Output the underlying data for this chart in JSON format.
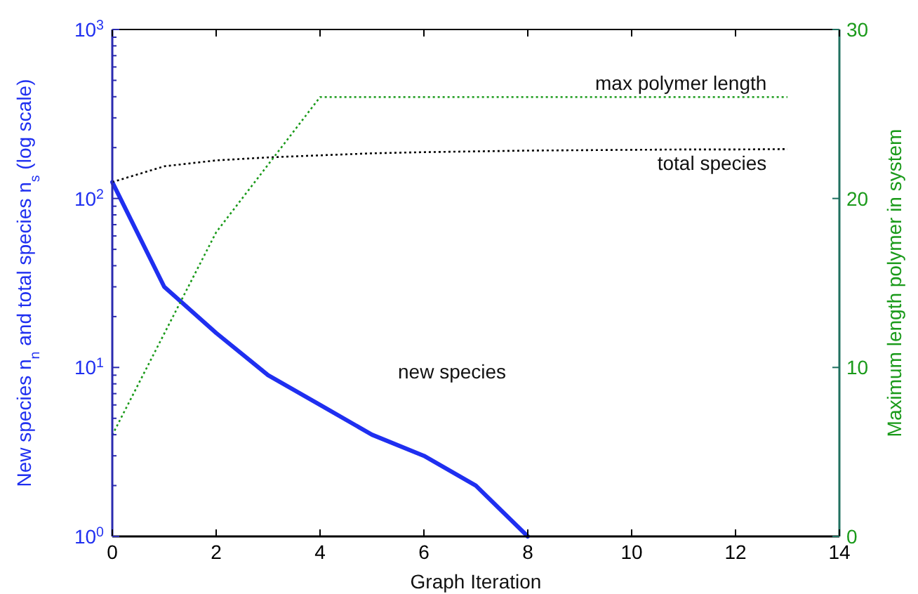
{
  "chart_data": {
    "type": "line",
    "xlabel": "Graph Iteration",
    "ylabel": "New species n$_{n}$ and total species n$_{s}$ (log scale)",
    "y2label": "Maximum length polymer in system",
    "log": true,
    "grid": false,
    "x": [
      0,
      1,
      2,
      3,
      4,
      5,
      6,
      7,
      8,
      9,
      10,
      11,
      12,
      13
    ],
    "xlim": [
      0,
      14
    ],
    "xticks": [
      0,
      2,
      4,
      6,
      8,
      10,
      12,
      14
    ],
    "ylim": [
      1,
      1000
    ],
    "yticks": [
      {
        "value": 1,
        "label": "10$^{0}$"
      },
      {
        "value": 2,
        "label": null
      },
      {
        "value": 3,
        "label": null
      },
      {
        "value": 4,
        "label": null
      },
      {
        "value": 5,
        "label": null
      },
      {
        "value": 6,
        "label": null
      },
      {
        "value": 7,
        "label": null
      },
      {
        "value": 8,
        "label": null
      },
      {
        "value": 9,
        "label": null
      },
      {
        "value": 10,
        "label": "10$^{1}$"
      },
      {
        "value": 20,
        "label": null
      },
      {
        "value": 30,
        "label": null
      },
      {
        "value": 40,
        "label": null
      },
      {
        "value": 50,
        "label": null
      },
      {
        "value": 60,
        "label": null
      },
      {
        "value": 70,
        "label": null
      },
      {
        "value": 80,
        "label": null
      },
      {
        "value": 90,
        "label": null
      },
      {
        "value": 100,
        "label": "10$^{2}$"
      },
      {
        "value": 200,
        "label": null
      },
      {
        "value": 300,
        "label": null
      },
      {
        "value": 400,
        "label": null
      },
      {
        "value": 500,
        "label": null
      },
      {
        "value": 600,
        "label": null
      },
      {
        "value": 700,
        "label": null
      },
      {
        "value": 800,
        "label": null
      },
      {
        "value": 900,
        "label": null
      },
      {
        "value": 1000,
        "label": "10$^{3}$"
      }
    ],
    "y2lim": [
      0,
      30
    ],
    "y2ticks": [
      0,
      10,
      20,
      30
    ],
    "series": [
      {
        "name": "new species",
        "color": "#1f2ff0",
        "line_style": "solid",
        "x": [
          0,
          1,
          2,
          3,
          4,
          5,
          6,
          7,
          8
        ],
        "values": [
          125,
          30,
          16,
          9,
          6,
          4,
          3,
          2,
          1
        ]
      },
      {
        "name": "total species",
        "color": "#000000",
        "line_style": "dotted",
        "values": [
          125,
          155,
          168,
          175,
          180,
          185,
          188,
          190,
          192,
          193,
          194,
          195,
          195,
          196
        ]
      },
      {
        "name": "max polymer length",
        "color": "#1a9a1a",
        "line_style": "dotted",
        "axis": "y2",
        "values": [
          6,
          12,
          18,
          22,
          26,
          26,
          26,
          26,
          26,
          26,
          26,
          26,
          26,
          26
        ]
      }
    ]
  }
}
